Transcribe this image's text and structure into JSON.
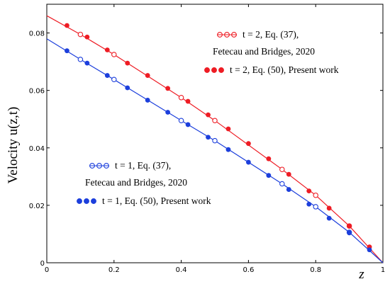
{
  "chart_data": {
    "type": "line",
    "xlabel": "z",
    "ylabel": "Velocity u(z,t)",
    "xlim": [
      0,
      1
    ],
    "ylim": [
      0,
      0.09
    ],
    "x_ticks": [
      "0",
      "0.2",
      "0.4",
      "0.6",
      "0.8",
      "1"
    ],
    "y_ticks": [
      "0",
      "0.02",
      "0.04",
      "0.06",
      "0.08"
    ],
    "grid": false,
    "colors": {
      "red": "#ee1c24",
      "blue": "#1c3fdc"
    },
    "series": [
      {
        "name": "t = 2, Eq. (37), Fetecau and Bridges, 2020",
        "color": "#ee1c24",
        "marker": "open-circle",
        "x": [
          0,
          0.1,
          0.2,
          0.4,
          0.5,
          0.7,
          0.8,
          0.9,
          1
        ],
        "y": [
          0.086,
          0.0795,
          0.0725,
          0.0575,
          0.0495,
          0.0325,
          0.0235,
          0.0128,
          0
        ]
      },
      {
        "name": "t = 2, Eq. (50), Present work",
        "color": "#ee1c24",
        "marker": "filled-circle",
        "x": [
          0.06,
          0.12,
          0.18,
          0.24,
          0.3,
          0.36,
          0.42,
          0.48,
          0.54,
          0.6,
          0.66,
          0.72,
          0.78,
          0.84,
          0.9,
          0.96
        ],
        "y": [
          0.0826,
          0.0786,
          0.0741,
          0.0695,
          0.0652,
          0.0607,
          0.0562,
          0.0515,
          0.0466,
          0.0415,
          0.0362,
          0.0308,
          0.025,
          0.019,
          0.0128,
          0.0055
        ]
      },
      {
        "name": "t = 1, Eq. (37), Fetecau and Bridges, 2020",
        "color": "#1c3fdc",
        "marker": "open-circle",
        "x": [
          0,
          0.1,
          0.2,
          0.4,
          0.5,
          0.7,
          0.8,
          0.9,
          1
        ],
        "y": [
          0.078,
          0.0708,
          0.0638,
          0.0495,
          0.0425,
          0.0275,
          0.0195,
          0.0106,
          0
        ]
      },
      {
        "name": "t = 1, Eq. (50), Present work",
        "color": "#1c3fdc",
        "marker": "filled-circle",
        "x": [
          0.06,
          0.12,
          0.18,
          0.24,
          0.3,
          0.36,
          0.42,
          0.48,
          0.54,
          0.6,
          0.66,
          0.72,
          0.78,
          0.84,
          0.9,
          0.96
        ],
        "y": [
          0.0738,
          0.0695,
          0.0652,
          0.0609,
          0.0566,
          0.0524,
          0.0481,
          0.0437,
          0.0394,
          0.035,
          0.0304,
          0.0255,
          0.0204,
          0.0155,
          0.0104,
          0.0045
        ]
      }
    ],
    "legends": [
      {
        "placement": "top-right",
        "entries": [
          {
            "series": 0,
            "line1": "t = 2, Eq. (37),",
            "line2": "Fetecau and Bridges, 2020"
          },
          {
            "series": 1,
            "line1": "t = 2, Eq. (50), Present work"
          }
        ]
      },
      {
        "placement": "bottom-left",
        "entries": [
          {
            "series": 2,
            "line1": "t = 1, Eq. (37),",
            "line2": "Fetecau and Bridges, 2020"
          },
          {
            "series": 3,
            "line1": "t = 1, Eq. (50), Present work"
          }
        ]
      }
    ]
  }
}
